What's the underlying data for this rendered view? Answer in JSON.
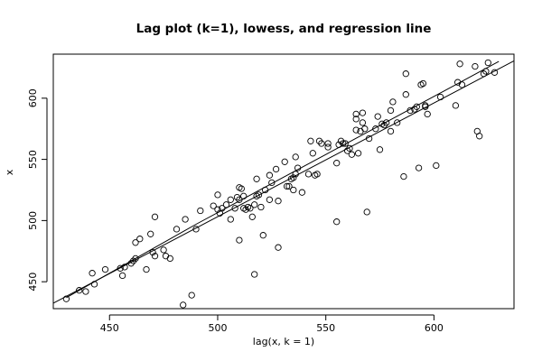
{
  "chart_data": {
    "type": "scatter",
    "title": "Lag plot (k=1), lowess, and regression line",
    "xlabel": "lag(x, k = 1)",
    "ylabel": "x",
    "xlim": [
      424,
      637
    ],
    "ylim": [
      428,
      636
    ],
    "xticks": [
      450,
      500,
      550,
      600
    ],
    "yticks": [
      450,
      500,
      550,
      600
    ],
    "grid": false,
    "points": [
      [
        430,
        436
      ],
      [
        436,
        443
      ],
      [
        439,
        442
      ],
      [
        442,
        457
      ],
      [
        443,
        448
      ],
      [
        448,
        460
      ],
      [
        455,
        461
      ],
      [
        456,
        455
      ],
      [
        457,
        462
      ],
      [
        460,
        465
      ],
      [
        461,
        467
      ],
      [
        462,
        469
      ],
      [
        462,
        482
      ],
      [
        464,
        485
      ],
      [
        467,
        460
      ],
      [
        469,
        489
      ],
      [
        470,
        474
      ],
      [
        471,
        471
      ],
      [
        471,
        503
      ],
      [
        475,
        476
      ],
      [
        476,
        471
      ],
      [
        478,
        469
      ],
      [
        481,
        493
      ],
      [
        484,
        431
      ],
      [
        485,
        501
      ],
      [
        488,
        439
      ],
      [
        490,
        493
      ],
      [
        492,
        508
      ],
      [
        498,
        512
      ],
      [
        500,
        509
      ],
      [
        500,
        521
      ],
      [
        501,
        506
      ],
      [
        502,
        510
      ],
      [
        504,
        513
      ],
      [
        506,
        517
      ],
      [
        506,
        501
      ],
      [
        508,
        510
      ],
      [
        509,
        519
      ],
      [
        510,
        484
      ],
      [
        510,
        517
      ],
      [
        510,
        527
      ],
      [
        511,
        526
      ],
      [
        512,
        520
      ],
      [
        512,
        510
      ],
      [
        513,
        509
      ],
      [
        514,
        511
      ],
      [
        515,
        510
      ],
      [
        516,
        503
      ],
      [
        517,
        456
      ],
      [
        517,
        513
      ],
      [
        518,
        534
      ],
      [
        518,
        520
      ],
      [
        519,
        521
      ],
      [
        520,
        511
      ],
      [
        521,
        488
      ],
      [
        522,
        525
      ],
      [
        524,
        537
      ],
      [
        524,
        517
      ],
      [
        525,
        531
      ],
      [
        527,
        542
      ],
      [
        528,
        478
      ],
      [
        528,
        516
      ],
      [
        531,
        548
      ],
      [
        532,
        528
      ],
      [
        533,
        528
      ],
      [
        534,
        534
      ],
      [
        535,
        525
      ],
      [
        535,
        535
      ],
      [
        536,
        538
      ],
      [
        536,
        552
      ],
      [
        537,
        543
      ],
      [
        539,
        523
      ],
      [
        542,
        538
      ],
      [
        543,
        565
      ],
      [
        544,
        555
      ],
      [
        545,
        537
      ],
      [
        546,
        538
      ],
      [
        547,
        565
      ],
      [
        548,
        563
      ],
      [
        551,
        563
      ],
      [
        551,
        560
      ],
      [
        555,
        499
      ],
      [
        555,
        547
      ],
      [
        556,
        562
      ],
      [
        557,
        565
      ],
      [
        558,
        563
      ],
      [
        559,
        563
      ],
      [
        560,
        557
      ],
      [
        561,
        559
      ],
      [
        562,
        554
      ],
      [
        564,
        574
      ],
      [
        564,
        583
      ],
      [
        564,
        587
      ],
      [
        565,
        555
      ],
      [
        566,
        573
      ],
      [
        567,
        580
      ],
      [
        567,
        588
      ],
      [
        568,
        575
      ],
      [
        569,
        507
      ],
      [
        570,
        567
      ],
      [
        573,
        575
      ],
      [
        574,
        585
      ],
      [
        575,
        558
      ],
      [
        576,
        579
      ],
      [
        577,
        578
      ],
      [
        578,
        580
      ],
      [
        580,
        590
      ],
      [
        580,
        573
      ],
      [
        581,
        597
      ],
      [
        583,
        580
      ],
      [
        586,
        536
      ],
      [
        587,
        603
      ],
      [
        587,
        620
      ],
      [
        589,
        590
      ],
      [
        591,
        591
      ],
      [
        592,
        593
      ],
      [
        593,
        543
      ],
      [
        594,
        611
      ],
      [
        595,
        612
      ],
      [
        596,
        593
      ],
      [
        596,
        594
      ],
      [
        597,
        587
      ],
      [
        601,
        545
      ],
      [
        603,
        601
      ],
      [
        610,
        594
      ],
      [
        611,
        613
      ],
      [
        612,
        628
      ],
      [
        613,
        611
      ],
      [
        619,
        626
      ],
      [
        620,
        573
      ],
      [
        621,
        569
      ],
      [
        623,
        620
      ],
      [
        624,
        622
      ],
      [
        625,
        629
      ],
      [
        628,
        621
      ]
    ],
    "regression_line": {
      "x": [
        424,
        637
      ],
      "y": [
        432.5,
        630.5
      ]
    },
    "lowess_line": {
      "x": [
        430,
        450,
        470,
        490,
        510,
        530,
        550,
        570,
        590,
        610,
        630
      ],
      "y": [
        437,
        457,
        477,
        497,
        516,
        535,
        554,
        573,
        592,
        611,
        630
      ]
    }
  }
}
